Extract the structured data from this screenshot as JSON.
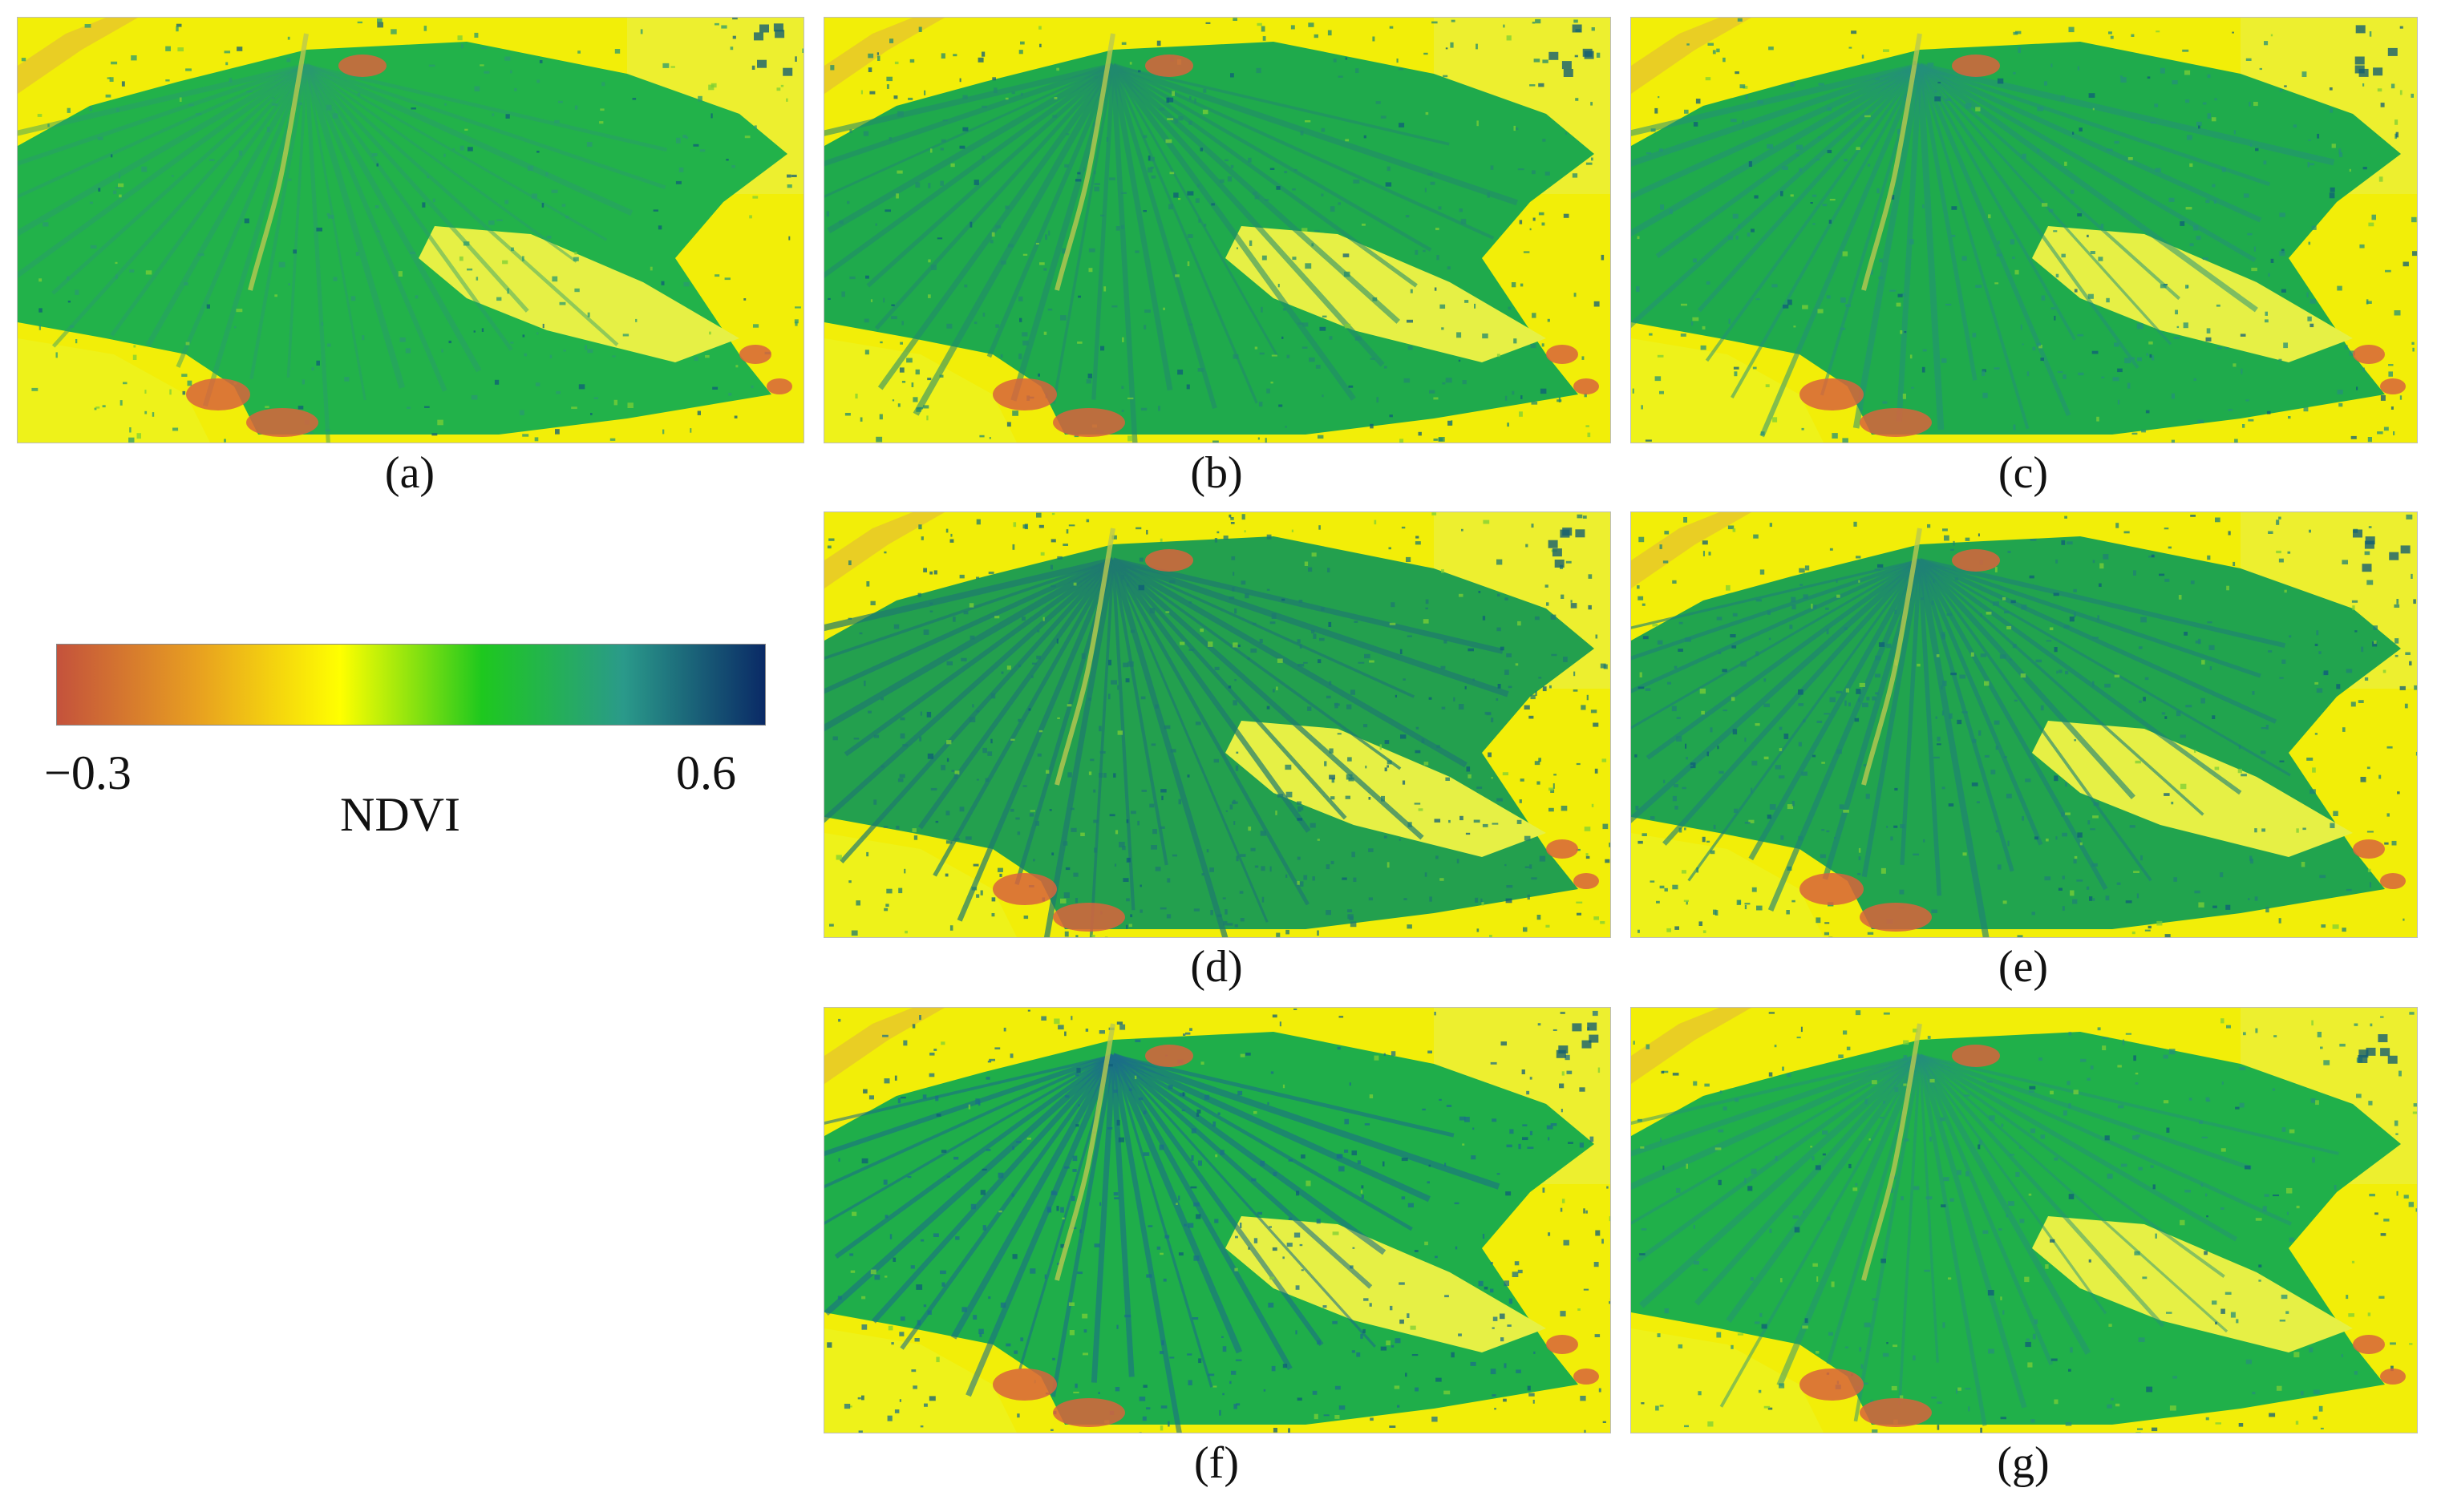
{
  "panels": [
    {
      "id": "a",
      "label": "(a)"
    },
    {
      "id": "b",
      "label": "(b)"
    },
    {
      "id": "c",
      "label": "(c)"
    },
    {
      "id": "d",
      "label": "(d)"
    },
    {
      "id": "e",
      "label": "(e)"
    },
    {
      "id": "f",
      "label": "(f)"
    },
    {
      "id": "g",
      "label": "(g)"
    }
  ],
  "colorbar": {
    "min_label": "−0.3",
    "max_label": "0.6",
    "title": "NDVI",
    "min_value": -0.3,
    "max_value": 0.6,
    "colors": [
      "#c4523c",
      "#e8a020",
      "#ffff00",
      "#1ec81e",
      "#2a9a8a",
      "#0a2a66"
    ]
  }
}
